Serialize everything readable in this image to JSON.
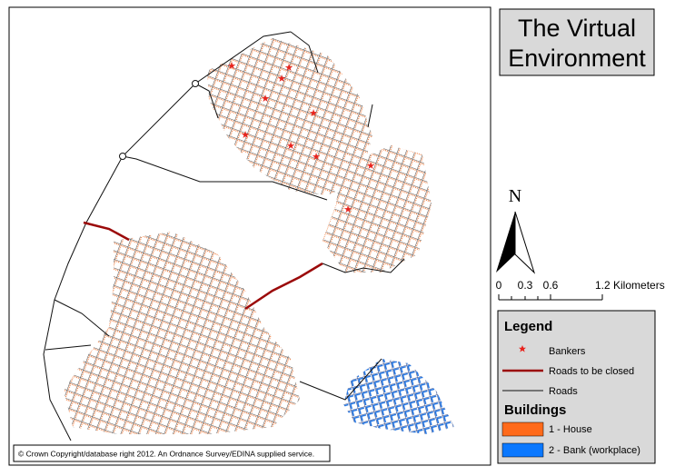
{
  "title": {
    "lines": [
      "The Virtual",
      "Environment"
    ]
  },
  "north": "N",
  "scale_bar": {
    "labels": [
      "0",
      "0.3",
      "0.6",
      "1.2 Kilometers"
    ]
  },
  "legend": {
    "title": "Legend",
    "items": [
      {
        "label": "Bankers",
        "color": "#e8231d"
      },
      {
        "label": "Roads to be closed",
        "color": "#9b0a0a"
      },
      {
        "label": "Roads",
        "color": "#111111"
      }
    ]
  },
  "buildings": {
    "title": "Buildings",
    "items": [
      {
        "label": "1 - House",
        "color": "#ff6a1a"
      },
      {
        "label": "2 - Bank (workplace)",
        "color": "#0a78ff"
      }
    ]
  },
  "copyright": "© Crown Copyright/database right 2012. An Ordnance Survey/EDINA supplied service."
}
